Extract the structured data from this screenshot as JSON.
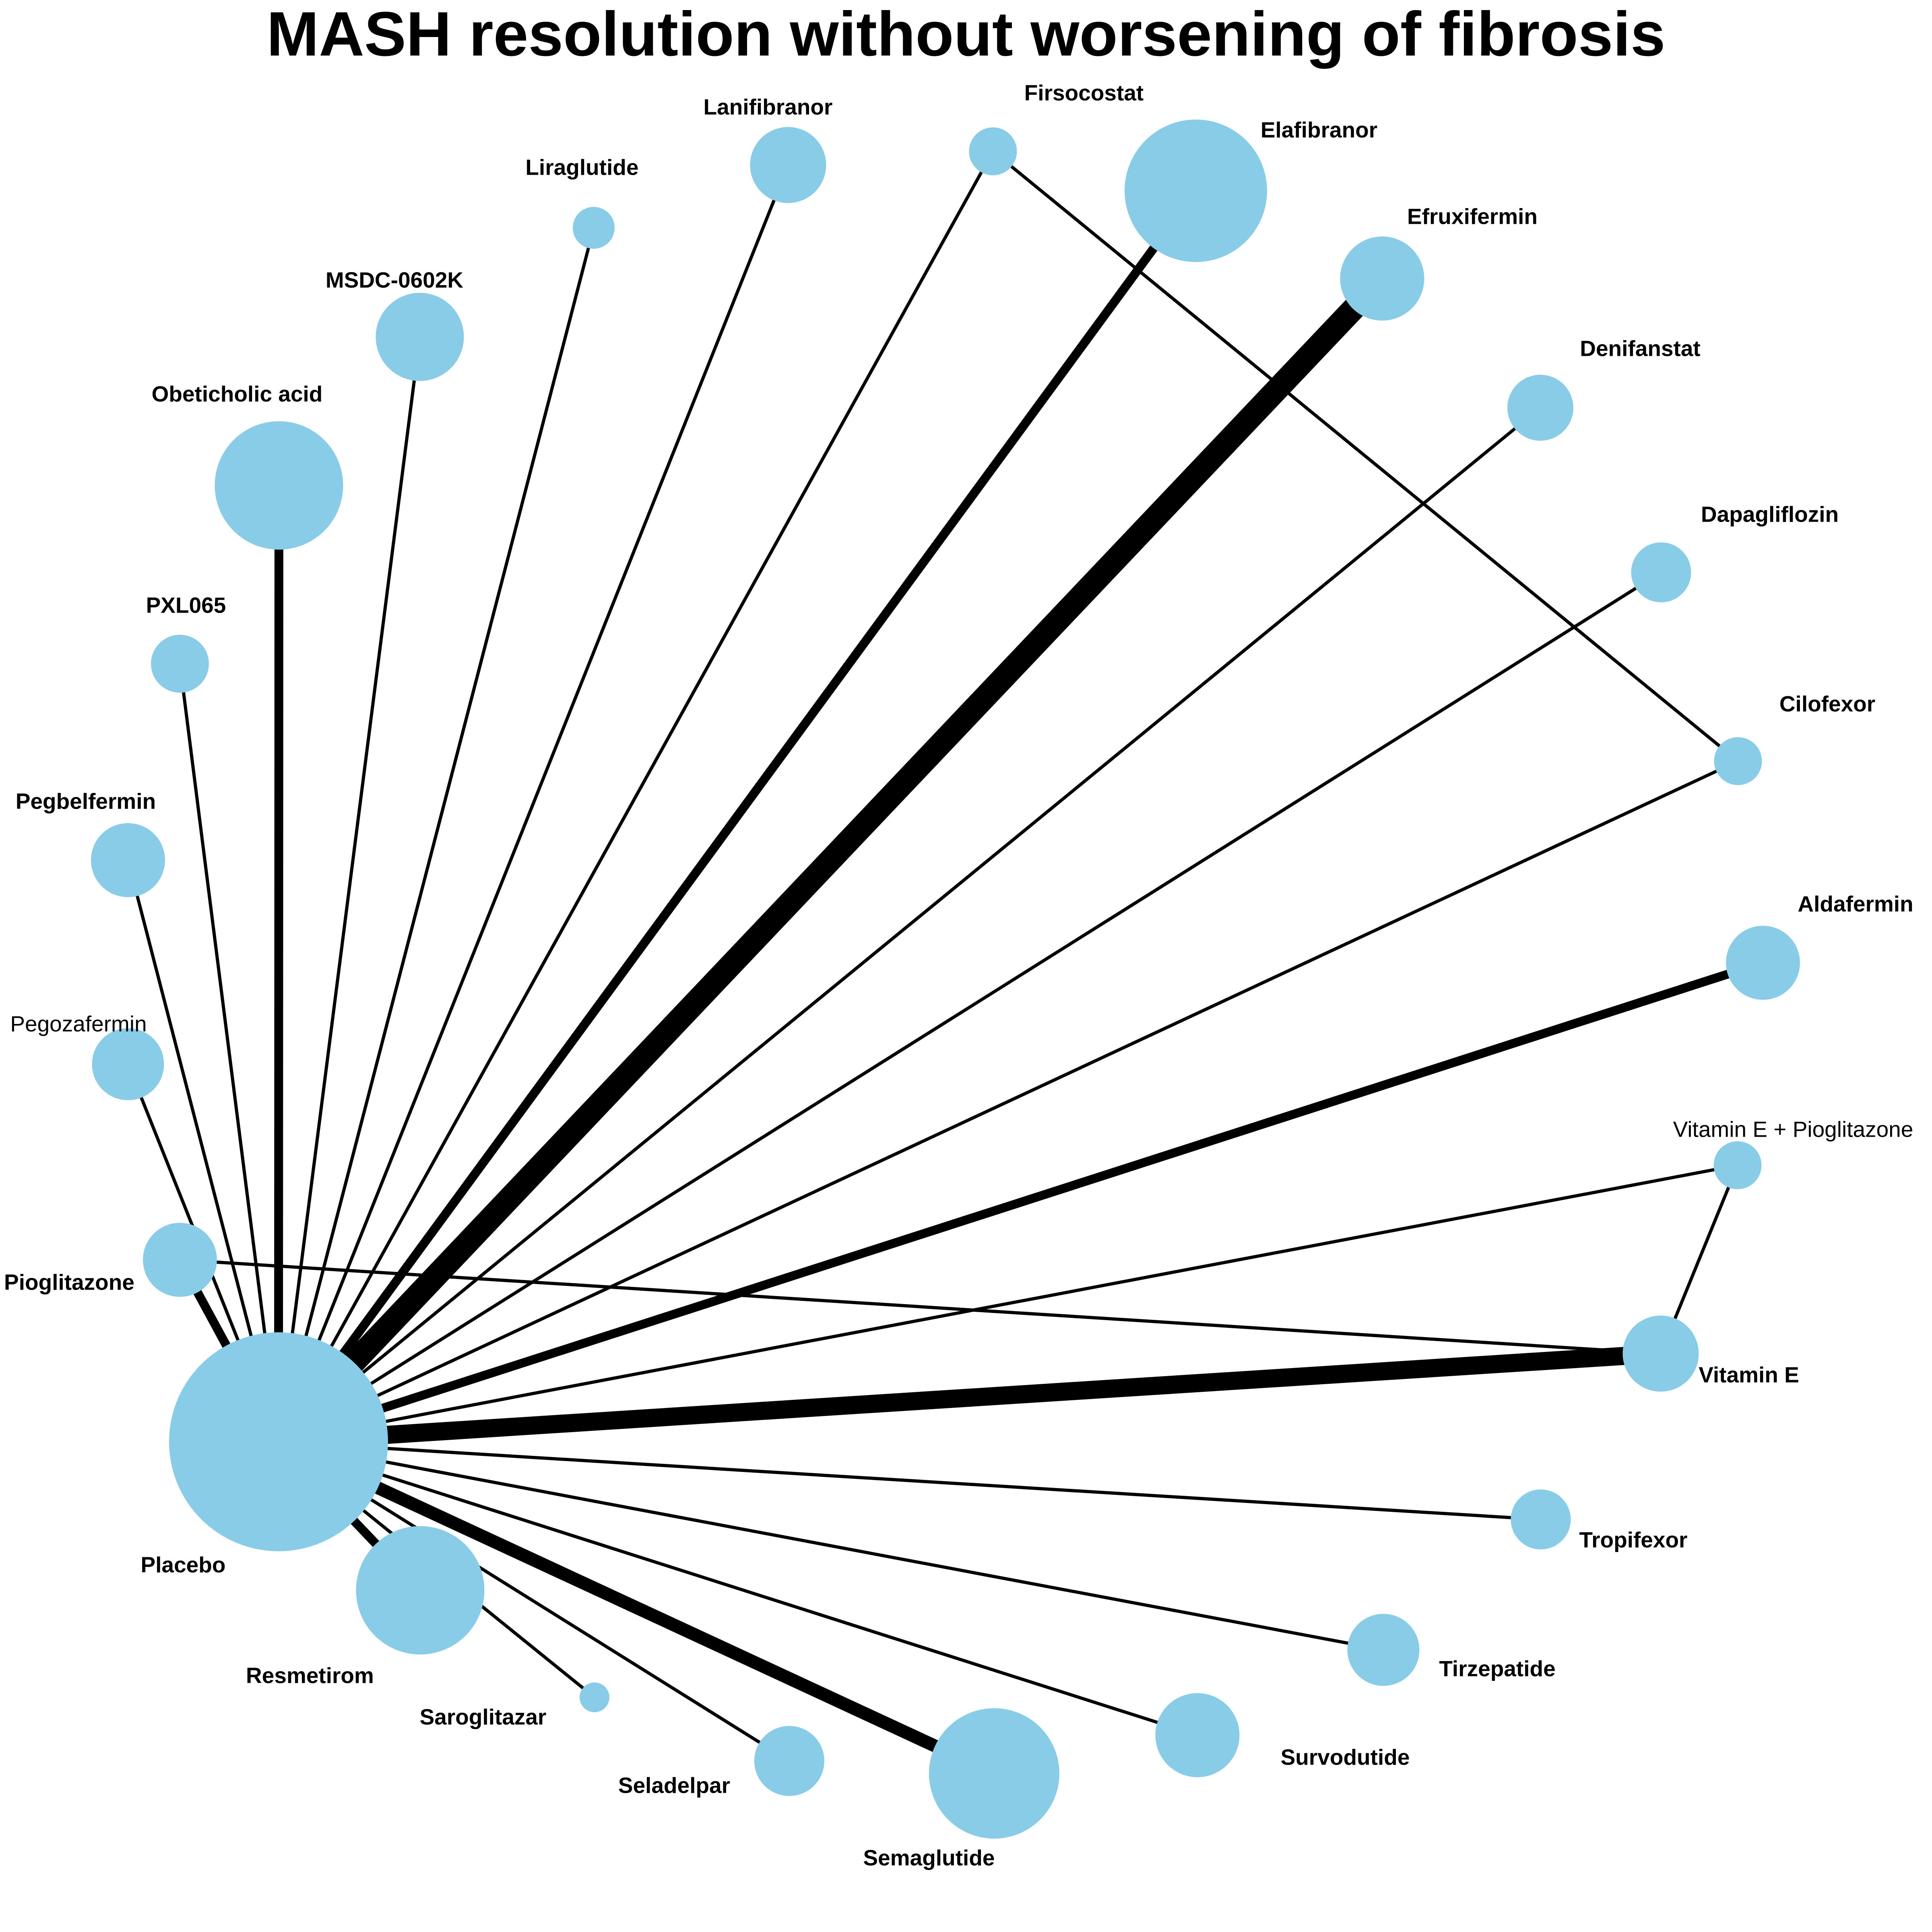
{
  "title": "MASH resolution without worsening of fibrosis",
  "colors": {
    "node": "#89cce8",
    "edge": "#000000",
    "background": "#ffffff"
  },
  "nodes": [
    {
      "id": "placebo",
      "label": "Placebo",
      "bold": true,
      "size": 10
    },
    {
      "id": "resmetirom",
      "label": "Resmetirom",
      "bold": true,
      "size": 5.5
    },
    {
      "id": "saroglitazar",
      "label": "Saroglitazar",
      "bold": true,
      "size": 0.6
    },
    {
      "id": "seladelpar",
      "label": "Seladelpar",
      "bold": true,
      "size": 2.6
    },
    {
      "id": "semaglutide",
      "label": "Semaglutide",
      "bold": true,
      "size": 5.6
    },
    {
      "id": "survodutide",
      "label": "Survodutide",
      "bold": true,
      "size": 3.3
    },
    {
      "id": "tirzepatide",
      "label": "Tirzepatide",
      "bold": true,
      "size": 2.7
    },
    {
      "id": "tropifexor",
      "label": "Tropifexor",
      "bold": true,
      "size": 2.1
    },
    {
      "id": "vitamin_e",
      "label": "Vitamin E",
      "bold": true,
      "size": 2.9
    },
    {
      "id": "vite_pio",
      "label": "Vitamin E + Pioglitazone",
      "bold": false,
      "size": 1.5
    },
    {
      "id": "aldafermin",
      "label": "Aldafermin",
      "bold": true,
      "size": 2.8
    },
    {
      "id": "cilofexor",
      "label": "Cilofexor",
      "bold": true,
      "size": 1.5
    },
    {
      "id": "dapagliflozin",
      "label": "Dapagliflozin",
      "bold": true,
      "size": 2.1
    },
    {
      "id": "denifanstat",
      "label": "Denifanstat",
      "bold": true,
      "size": 2.4
    },
    {
      "id": "efruxifermin",
      "label": "Efruxifermin",
      "bold": true,
      "size": 3.3
    },
    {
      "id": "elafibranor",
      "label": "Elafibranor",
      "bold": true,
      "size": 6.2
    },
    {
      "id": "firsocostat",
      "label": "Firsocostat",
      "bold": true,
      "size": 1.5
    },
    {
      "id": "lanifibranor",
      "label": "Lanifibranor",
      "bold": true,
      "size": 2.9
    },
    {
      "id": "liraglutide",
      "label": "Liraglutide",
      "bold": true,
      "size": 1.2
    },
    {
      "id": "msdc",
      "label": "MSDC-0602K",
      "bold": true,
      "size": 3.5
    },
    {
      "id": "oca",
      "label": "Obeticholic acid",
      "bold": true,
      "size": 5.5
    },
    {
      "id": "pxl065",
      "label": "PXL065",
      "bold": true,
      "size": 2.0
    },
    {
      "id": "pegbelfermin",
      "label": "Pegbelfermin",
      "bold": true,
      "size": 2.8
    },
    {
      "id": "pegozafermin",
      "label": "Pegozafermin",
      "bold": false,
      "size": 2.7
    },
    {
      "id": "pioglitazone",
      "label": "Pioglitazone",
      "bold": true,
      "size": 2.8
    }
  ],
  "edges": [
    {
      "source": "placebo",
      "target": "resmetirom",
      "weight": 2
    },
    {
      "source": "placebo",
      "target": "saroglitazar",
      "weight": 1
    },
    {
      "source": "placebo",
      "target": "seladelpar",
      "weight": 1
    },
    {
      "source": "placebo",
      "target": "semaglutide",
      "weight": 3
    },
    {
      "source": "placebo",
      "target": "survodutide",
      "weight": 1
    },
    {
      "source": "placebo",
      "target": "tirzepatide",
      "weight": 1
    },
    {
      "source": "placebo",
      "target": "tropifexor",
      "weight": 1
    },
    {
      "source": "placebo",
      "target": "vitamin_e",
      "weight": 4
    },
    {
      "source": "placebo",
      "target": "vite_pio",
      "weight": 1
    },
    {
      "source": "placebo",
      "target": "aldafermin",
      "weight": 2
    },
    {
      "source": "placebo",
      "target": "cilofexor",
      "weight": 1
    },
    {
      "source": "placebo",
      "target": "dapagliflozin",
      "weight": 1
    },
    {
      "source": "placebo",
      "target": "denifanstat",
      "weight": 1
    },
    {
      "source": "placebo",
      "target": "efruxifermin",
      "weight": 5
    },
    {
      "source": "placebo",
      "target": "elafibranor",
      "weight": 2
    },
    {
      "source": "placebo",
      "target": "firsocostat",
      "weight": 1
    },
    {
      "source": "placebo",
      "target": "lanifibranor",
      "weight": 1
    },
    {
      "source": "placebo",
      "target": "liraglutide",
      "weight": 1
    },
    {
      "source": "placebo",
      "target": "msdc",
      "weight": 1
    },
    {
      "source": "placebo",
      "target": "oca",
      "weight": 2
    },
    {
      "source": "placebo",
      "target": "pxl065",
      "weight": 1
    },
    {
      "source": "placebo",
      "target": "pegbelfermin",
      "weight": 1
    },
    {
      "source": "placebo",
      "target": "pegozafermin",
      "weight": 1
    },
    {
      "source": "placebo",
      "target": "pioglitazone",
      "weight": 2
    },
    {
      "source": "pioglitazone",
      "target": "vitamin_e",
      "weight": 1
    },
    {
      "source": "vitamin_e",
      "target": "vite_pio",
      "weight": 1
    },
    {
      "source": "firsocostat",
      "target": "cilofexor",
      "weight": 1
    }
  ]
}
